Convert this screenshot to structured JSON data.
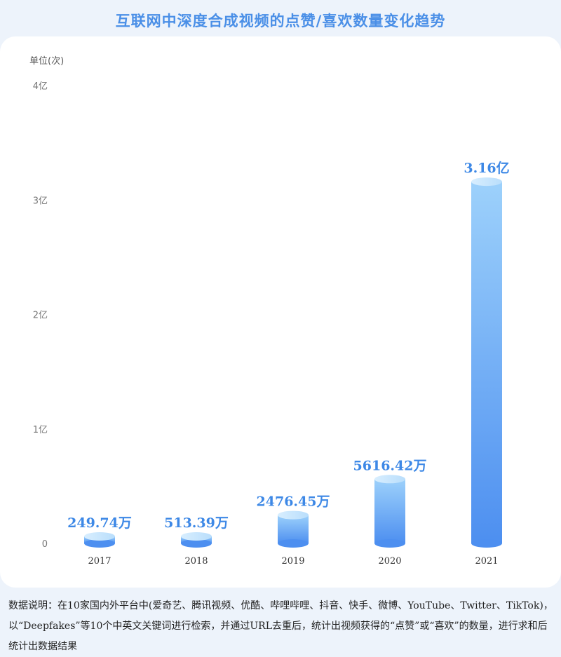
{
  "title": "互联网中深度合成视频的点赞/喜欢数量变化趋势",
  "unit_label": "单位(次)",
  "footnote": "数据说明：在10家国内外平台中(爱奇艺、腾讯视频、优酷、哔哩哔哩、抖音、快手、微博、YouTube、Twitter、TikTok)，以“Deepfakes”等10个中英文关键词进行检索，并通过URL去重后，统计出视频获得的“点赞”或“喜欢”的数量，进行求和后统计出数据结果",
  "chart_data": {
    "type": "bar",
    "title": "互联网中深度合成视频的点赞/喜欢数量变化趋势",
    "ylabel": "单位(次)",
    "categories": [
      "2017",
      "2018",
      "2019",
      "2020",
      "2021"
    ],
    "values": [
      2497400,
      5133900,
      24764500,
      56164200,
      316000000
    ],
    "data_labels": [
      "249.74万",
      "513.39万",
      "2476.45万",
      "5616.42万",
      "3.16亿"
    ],
    "ylim": [
      0,
      400000000
    ],
    "yticks": [
      0,
      100000000,
      200000000,
      300000000,
      400000000
    ],
    "ytick_labels": [
      "0",
      "1亿",
      "2亿",
      "3亿",
      "4亿"
    ],
    "grid": false,
    "colors": {
      "bar_top": "#9dd1fb",
      "bar_bottom": "#4d8ff0",
      "label": "#3d88e6"
    }
  }
}
